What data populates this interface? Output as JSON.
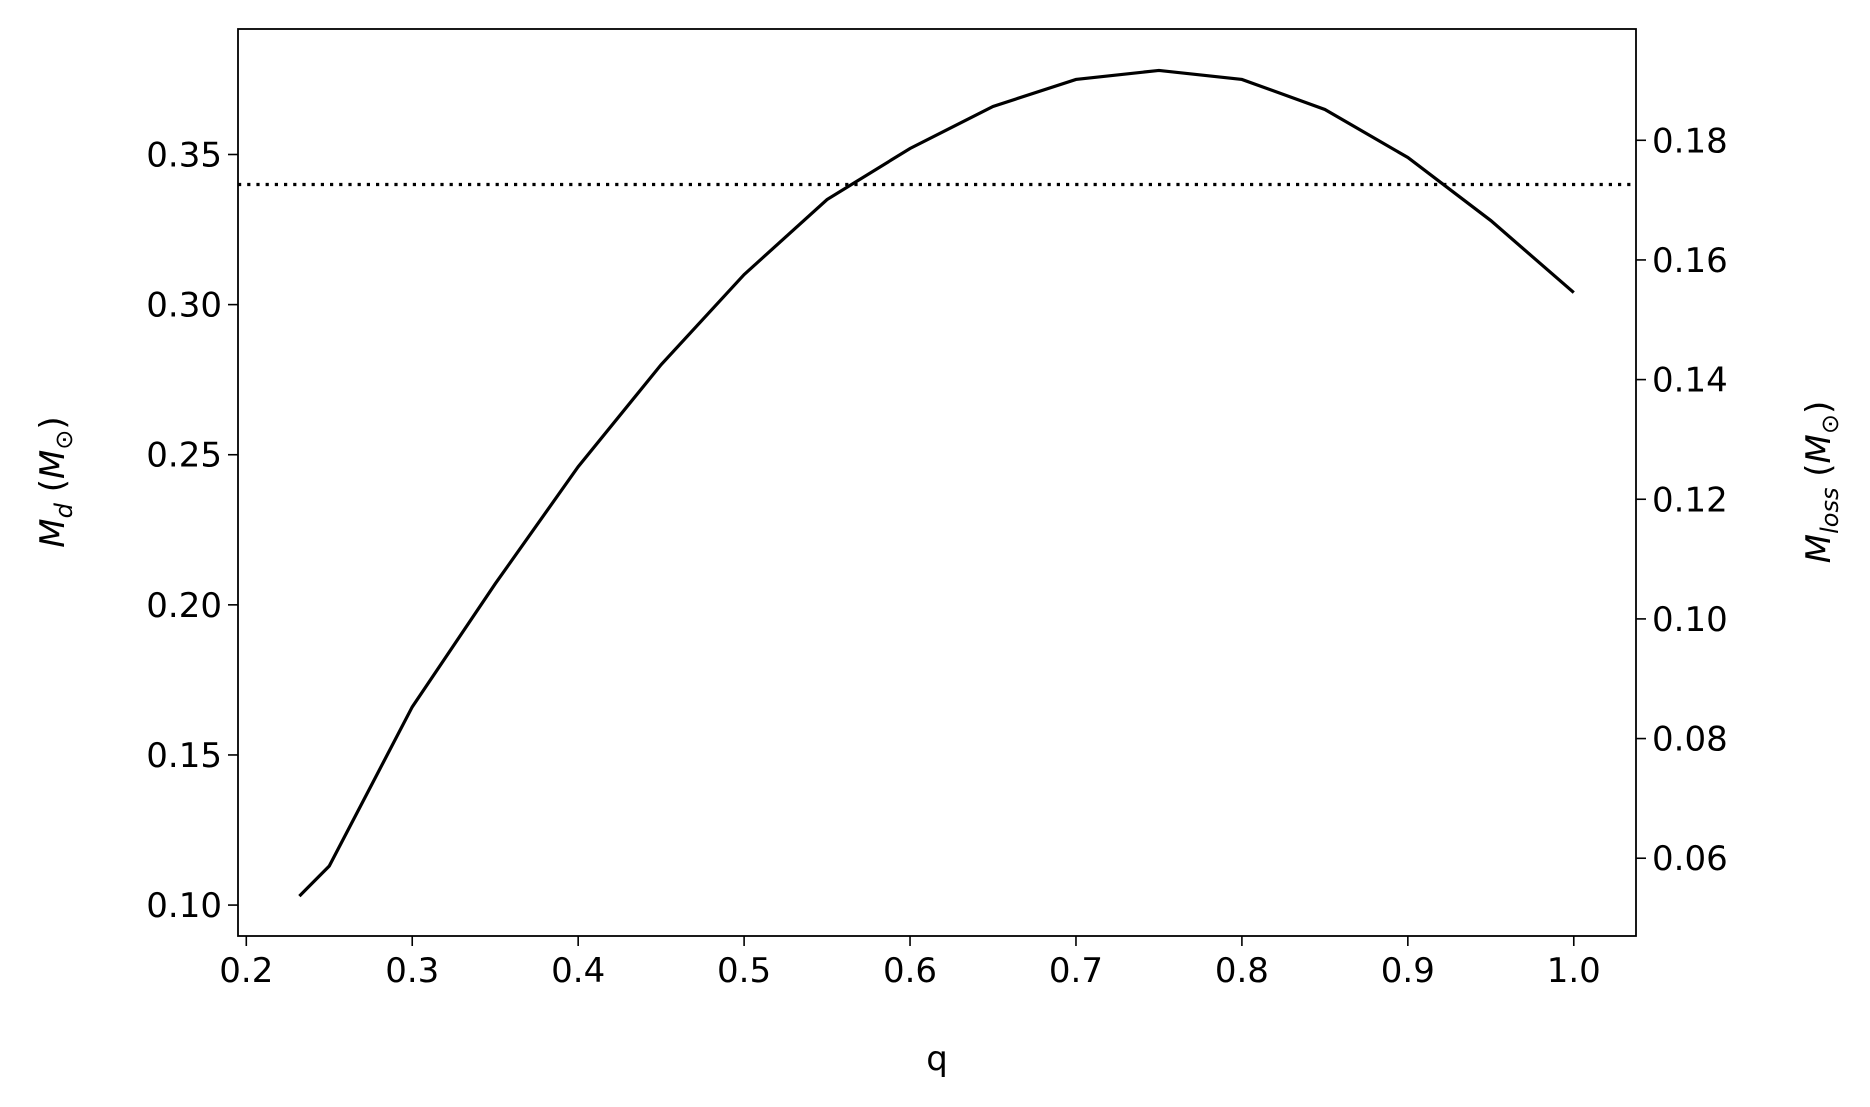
{
  "chart_data": {
    "type": "line",
    "x": [
      0.232,
      0.25,
      0.3,
      0.35,
      0.4,
      0.45,
      0.5,
      0.55,
      0.6,
      0.65,
      0.7,
      0.75,
      0.8,
      0.85,
      0.9,
      0.95,
      1.0
    ],
    "series": [
      {
        "color": "#000000",
        "values": [
          0.103,
          0.113,
          0.166,
          0.207,
          0.246,
          0.28,
          0.31,
          0.335,
          0.352,
          0.366,
          0.375,
          0.378,
          0.375,
          0.365,
          0.349,
          0.328,
          0.304
        ]
      }
    ],
    "hlines": [
      {
        "y": 0.34,
        "color": "#000000",
        "style": "dotted"
      }
    ],
    "xlabel": "q",
    "ylabel": [
      {
        "text": "M",
        "style": "italic"
      },
      {
        "text": "d",
        "style": "italic-sub"
      },
      {
        "text": " ("
      },
      {
        "text": "M",
        "style": "italic"
      },
      {
        "text": "⊙",
        "style": "sub"
      },
      {
        "text": ")"
      }
    ],
    "y2label": [
      {
        "text": "M",
        "style": "italic"
      },
      {
        "text": "loss",
        "style": "italic-sub"
      },
      {
        "text": " ("
      },
      {
        "text": "M",
        "style": "italic"
      },
      {
        "text": "⊙",
        "style": "sub"
      },
      {
        "text": ")"
      }
    ],
    "xlim": [
      0.195,
      1.0375
    ],
    "xticks": [
      0.2,
      0.3,
      0.4,
      0.5,
      0.6,
      0.7,
      0.8,
      0.9,
      {
        "value": 1.0,
        "label": "1.0"
      }
    ],
    "ylim": [
      0.0897,
      0.3918
    ],
    "yticks": [
      {
        "value": 0.1,
        "label": "0.10"
      },
      0.15,
      {
        "value": 0.2,
        "label": "0.20"
      },
      0.25,
      {
        "value": 0.3,
        "label": "0.30"
      },
      0.35
    ],
    "y2lim": [
      0.047,
      0.1986
    ],
    "y2ticks": [
      0.06,
      0.08,
      {
        "value": 0.1,
        "label": "0.10"
      },
      0.12,
      0.14,
      0.16,
      0.18
    ],
    "grid": false
  }
}
